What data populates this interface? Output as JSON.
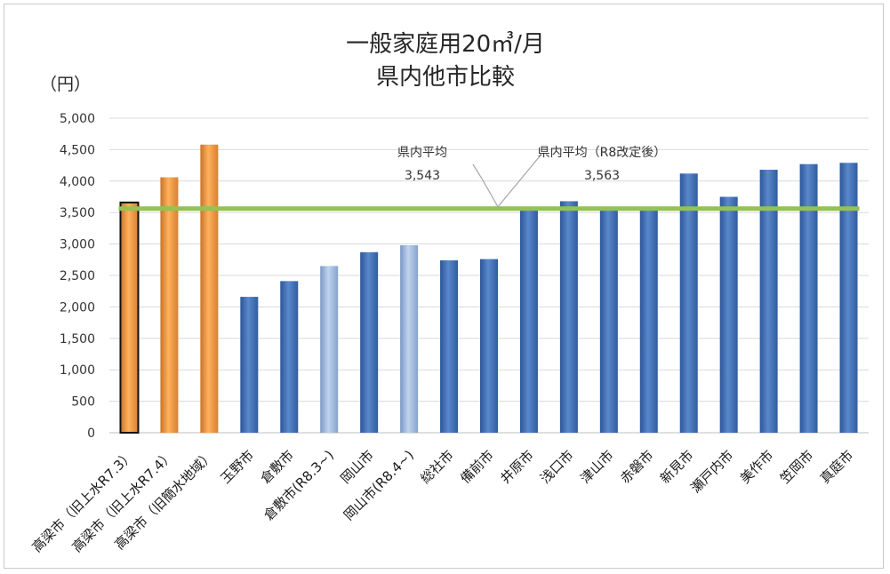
{
  "chart_data": {
    "type": "bar",
    "title_lines": [
      "一般家庭用20㎥/月",
      "県内他市比較"
    ],
    "unit_label": "（円）",
    "ylim": [
      0,
      5000
    ],
    "yticks": [
      0,
      500,
      1000,
      1500,
      2000,
      2500,
      3000,
      3500,
      4000,
      4500,
      5000
    ],
    "ytick_labels": [
      "0",
      "500",
      "1,000",
      "1,500",
      "2,000",
      "2,500",
      "3,000",
      "3,500",
      "4,000",
      "4,500",
      "5,000"
    ],
    "grid": true,
    "categories": [
      "高梁市（旧上水R7.3）",
      "高梁市（旧上水R7.4）",
      "高梁市（旧簡水地域）",
      "玉野市",
      "倉敷市",
      "倉敷市(R8.3~)",
      "岡山市",
      "岡山市(R8.4~)",
      "総社市",
      "備前市",
      "井原市",
      "浅口市",
      "津山市",
      "赤磐市",
      "新見市",
      "瀬戸内市",
      "美作市",
      "笠岡市",
      "真庭市"
    ],
    "values": [
      3660,
      4060,
      4580,
      2160,
      2410,
      2650,
      2870,
      2980,
      2740,
      2760,
      3540,
      3680,
      3550,
      3550,
      4120,
      3750,
      4180,
      4270,
      4290
    ],
    "bar_styles": [
      "orange-outlined",
      "orange",
      "orange",
      "blue",
      "blue",
      "lightblue",
      "blue",
      "lightblue",
      "blue",
      "blue",
      "blue",
      "blue",
      "blue",
      "blue",
      "blue",
      "blue",
      "blue",
      "blue",
      "blue"
    ],
    "reference_lines": [
      {
        "label": "県内平均",
        "value": 3543,
        "value_label": "3,543",
        "color": "#e0473a"
      },
      {
        "label": "県内平均（R8改定後）",
        "value": 3563,
        "value_label": "3,563",
        "color": "#92c353"
      }
    ],
    "colors": {
      "orange": "#f5a14a",
      "blue": "#3f6fb6",
      "lightblue": "#9bb6dc",
      "grid": "#d9d9d9",
      "axis": "#bfbfbf"
    }
  }
}
